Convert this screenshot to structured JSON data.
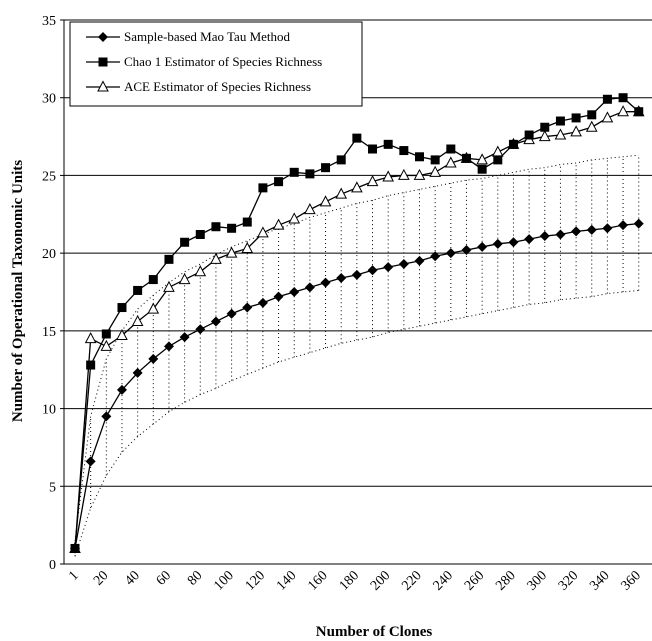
{
  "chart_data": {
    "type": "line",
    "xlabel": "Number of Clones",
    "ylabel": "Number of Operational Taxonomic Units",
    "ylim": [
      0,
      35
    ],
    "yticks": [
      0,
      5,
      10,
      15,
      20,
      25,
      30,
      35
    ],
    "xlim": [
      1,
      365
    ],
    "xticks": [
      1,
      20,
      40,
      60,
      80,
      100,
      120,
      140,
      160,
      180,
      200,
      220,
      240,
      260,
      280,
      300,
      320,
      340,
      360
    ],
    "grid": "horizontal",
    "legend_position": "top-left",
    "x": [
      1,
      11,
      21,
      31,
      41,
      51,
      61,
      71,
      81,
      91,
      101,
      111,
      121,
      131,
      141,
      151,
      161,
      171,
      181,
      191,
      201,
      211,
      221,
      231,
      241,
      251,
      261,
      271,
      281,
      291,
      301,
      311,
      321,
      331,
      341,
      351,
      361
    ],
    "series": [
      {
        "name": "Sample-based Mao Tau Method",
        "marker": "diamond",
        "values": [
          1.0,
          6.6,
          9.5,
          11.2,
          12.3,
          13.2,
          14.0,
          14.6,
          15.1,
          15.6,
          16.1,
          16.5,
          16.8,
          17.2,
          17.5,
          17.8,
          18.1,
          18.4,
          18.6,
          18.9,
          19.1,
          19.3,
          19.5,
          19.8,
          20.0,
          20.2,
          20.4,
          20.6,
          20.7,
          20.9,
          21.1,
          21.2,
          21.4,
          21.5,
          21.6,
          21.8,
          21.9
        ]
      },
      {
        "name": "Chao 1 Estimator of Species Richness",
        "marker": "square",
        "values": [
          1.0,
          12.8,
          14.8,
          16.5,
          17.6,
          18.3,
          19.6,
          20.7,
          21.2,
          21.7,
          21.6,
          22.0,
          24.2,
          24.6,
          25.2,
          25.1,
          25.5,
          26.0,
          27.4,
          26.7,
          27.0,
          26.6,
          26.2,
          26.0,
          26.7,
          26.1,
          25.4,
          26.0,
          27.0,
          27.6,
          28.1,
          28.5,
          28.7,
          28.9,
          29.9,
          30.0,
          29.1
        ]
      },
      {
        "name": "ACE Estimator of Species Richness",
        "marker": "triangle",
        "values": [
          1.0,
          14.5,
          14.0,
          14.7,
          15.6,
          16.4,
          17.8,
          18.3,
          18.8,
          19.6,
          20.0,
          20.3,
          21.3,
          21.8,
          22.2,
          22.8,
          23.3,
          23.8,
          24.2,
          24.6,
          24.9,
          25.0,
          25.0,
          25.2,
          25.8,
          26.1,
          26.0,
          26.5,
          27.0,
          27.3,
          27.5,
          27.6,
          27.8,
          28.1,
          28.7,
          29.1,
          29.1
        ]
      }
    ],
    "confidence_band": {
      "lower": [
        0.5,
        3.6,
        5.7,
        7.2,
        8.2,
        9.0,
        9.8,
        10.4,
        10.9,
        11.3,
        11.8,
        12.2,
        12.6,
        13.0,
        13.3,
        13.6,
        13.9,
        14.2,
        14.4,
        14.6,
        14.9,
        15.1,
        15.3,
        15.5,
        15.7,
        15.9,
        16.1,
        16.3,
        16.5,
        16.7,
        16.8,
        17.0,
        17.1,
        17.2,
        17.4,
        17.5,
        17.6
      ],
      "upper": [
        1.5,
        9.5,
        13.2,
        15.0,
        16.4,
        17.3,
        18.1,
        18.8,
        19.3,
        19.9,
        20.4,
        20.8,
        21.2,
        21.6,
        21.9,
        22.3,
        22.6,
        22.9,
        23.2,
        23.4,
        23.7,
        23.9,
        24.1,
        24.3,
        24.5,
        24.7,
        24.8,
        25.0,
        25.2,
        25.4,
        25.5,
        25.7,
        25.8,
        26.0,
        26.1,
        26.2,
        26.3
      ]
    }
  }
}
